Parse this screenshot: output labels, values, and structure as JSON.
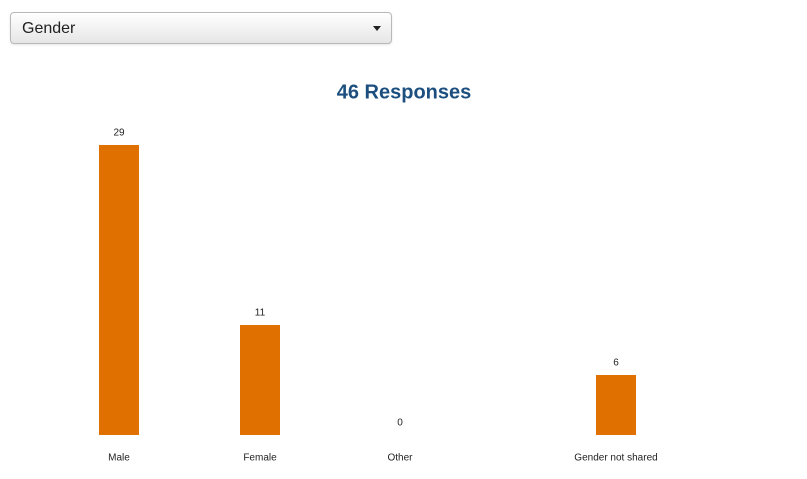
{
  "dropdown": {
    "label": "Gender"
  },
  "chart_data": {
    "type": "bar",
    "title": "46 Responses",
    "categories": [
      "Male",
      "Female",
      "Other",
      "Gender not shared"
    ],
    "values": [
      29,
      11,
      0,
      6
    ],
    "color": "#e07000"
  }
}
